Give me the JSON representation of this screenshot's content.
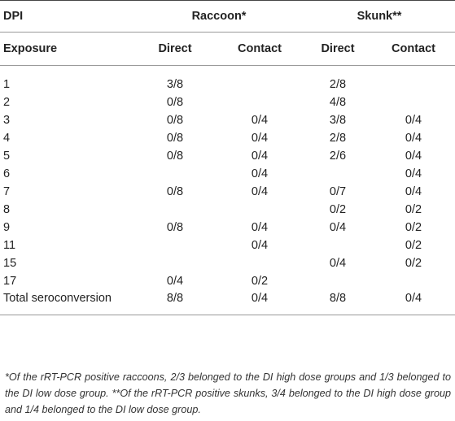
{
  "table": {
    "header_group": {
      "dpi_label": "DPI",
      "raccoon_label": "Raccoon*",
      "skunk_label": "Skunk**"
    },
    "header_sub": {
      "exposure_label": "Exposure",
      "raccoon_direct": "Direct",
      "raccoon_contact": "Contact",
      "skunk_direct": "Direct",
      "skunk_contact": "Contact"
    },
    "rows": [
      {
        "dpi": "1",
        "r_direct": "3/8",
        "r_contact": "",
        "s_direct": "2/8",
        "s_contact": ""
      },
      {
        "dpi": "2",
        "r_direct": "0/8",
        "r_contact": "",
        "s_direct": "4/8",
        "s_contact": ""
      },
      {
        "dpi": "3",
        "r_direct": "0/8",
        "r_contact": "0/4",
        "s_direct": "3/8",
        "s_contact": "0/4"
      },
      {
        "dpi": "4",
        "r_direct": "0/8",
        "r_contact": "0/4",
        "s_direct": "2/8",
        "s_contact": "0/4"
      },
      {
        "dpi": "5",
        "r_direct": "0/8",
        "r_contact": "0/4",
        "s_direct": "2/6",
        "s_contact": "0/4"
      },
      {
        "dpi": "6",
        "r_direct": "",
        "r_contact": "0/4",
        "s_direct": "",
        "s_contact": "0/4"
      },
      {
        "dpi": "7",
        "r_direct": "0/8",
        "r_contact": "0/4",
        "s_direct": "0/7",
        "s_contact": "0/4"
      },
      {
        "dpi": "8",
        "r_direct": "",
        "r_contact": "",
        "s_direct": "0/2",
        "s_contact": "0/2"
      },
      {
        "dpi": "9",
        "r_direct": "0/8",
        "r_contact": "0/4",
        "s_direct": "0/4",
        "s_contact": "0/2"
      },
      {
        "dpi": "11",
        "r_direct": "",
        "r_contact": "0/4",
        "s_direct": "",
        "s_contact": "0/2"
      },
      {
        "dpi": "15",
        "r_direct": "",
        "r_contact": "",
        "s_direct": "0/4",
        "s_contact": "0/2"
      },
      {
        "dpi": "17",
        "r_direct": "0/4",
        "r_contact": "0/2",
        "s_direct": "",
        "s_contact": ""
      }
    ],
    "total": {
      "label": "Total seroconversion",
      "r_direct": "8/8",
      "r_contact": "0/4",
      "s_direct": "8/8",
      "s_contact": "0/4"
    }
  },
  "footnote": "*Of the rRT-PCR positive raccoons, 2/3 belonged to the DI high dose groups and 1/3 belonged to the DI low dose group. **Of the rRT-PCR positive skunks, 3/4 belonged to the DI high dose group and 1/4 belonged to the DI low dose group."
}
